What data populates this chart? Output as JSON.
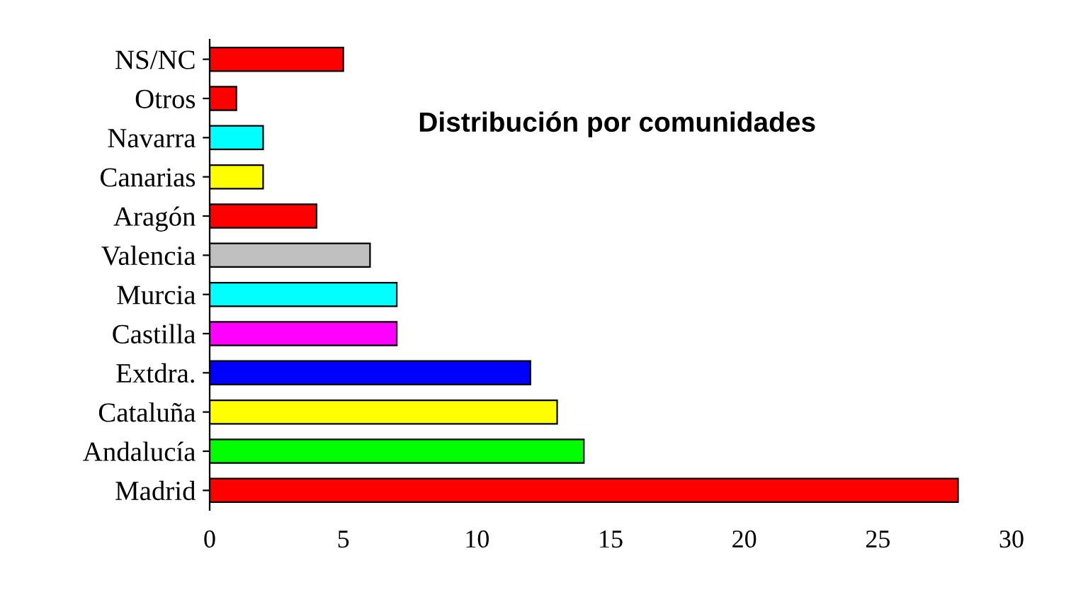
{
  "chart_data": {
    "type": "bar",
    "orientation": "horizontal",
    "title": "Distribución por comunidades",
    "categories": [
      "NS/NC",
      "Otros",
      "Navarra",
      "Canarias",
      "Aragón",
      "Valencia",
      "Murcia",
      "Castilla",
      "Extdra.",
      "Cataluña",
      "Andalucía",
      "Madrid"
    ],
    "values": [
      5,
      1,
      2,
      2,
      4,
      6,
      7,
      7,
      12,
      13,
      14,
      28
    ],
    "colors": [
      "#ff0000",
      "#ff0000",
      "#00ffff",
      "#ffff00",
      "#ff0000",
      "#c0c0c0",
      "#00ffff",
      "#ff00ff",
      "#0000ff",
      "#ffff00",
      "#00ff00",
      "#ff0000"
    ],
    "xlim": [
      0,
      30
    ],
    "xticks": [
      0,
      5,
      10,
      15,
      20,
      25,
      30
    ],
    "grid": false,
    "legend": false
  }
}
